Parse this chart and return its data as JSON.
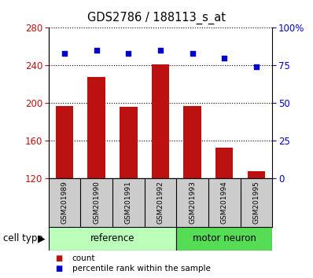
{
  "title": "GDS2786 / 188113_s_at",
  "samples": [
    "GSM201989",
    "GSM201990",
    "GSM201991",
    "GSM201992",
    "GSM201993",
    "GSM201994",
    "GSM201995"
  ],
  "bar_values": [
    197,
    228,
    196,
    241,
    197,
    152,
    127
  ],
  "percentile_values": [
    83,
    85,
    83,
    85,
    83,
    80,
    74
  ],
  "bar_color": "#bb1111",
  "percentile_color": "#0000cc",
  "ylim_left": [
    120,
    280
  ],
  "ylim_right": [
    0,
    100
  ],
  "yticks_left": [
    120,
    160,
    200,
    240,
    280
  ],
  "yticks_right": [
    0,
    25,
    50,
    75,
    100
  ],
  "ytick_labels_right": [
    "0",
    "25",
    "50",
    "75",
    "100%"
  ],
  "groups": [
    {
      "label": "reference",
      "indices": [
        0,
        1,
        2,
        3
      ],
      "color": "#bbffbb"
    },
    {
      "label": "motor neuron",
      "indices": [
        4,
        5,
        6
      ],
      "color": "#55dd55"
    }
  ],
  "cell_type_label": "cell type",
  "legend_count_label": "count",
  "legend_percentile_label": "percentile rank within the sample",
  "sample_box_color": "#cccccc",
  "plot_bg_color": "#ffffff",
  "bar_width": 0.55,
  "title_fontsize": 10.5,
  "axis_label_fontsize": 8.5,
  "sample_fontsize": 6.5,
  "group_fontsize": 8.5,
  "legend_fontsize": 7.5
}
